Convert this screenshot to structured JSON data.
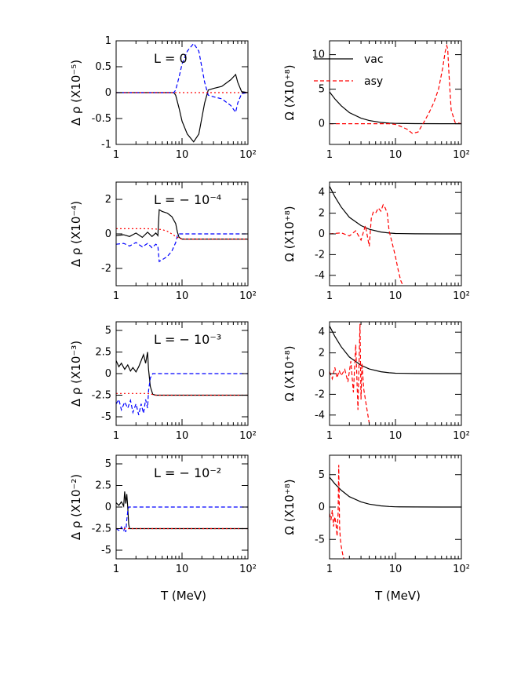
{
  "colors": {
    "vac": "#000000",
    "asy": "#ff0000",
    "blue": "#0000ff",
    "red": "#ff0000",
    "black": "#000000"
  },
  "legend": {
    "vac": "vac",
    "asy": "asy"
  },
  "xaxis": {
    "label": "T (MeV)",
    "ticks": [
      "1",
      "10",
      "10²"
    ],
    "range": [
      1,
      100
    ],
    "scale": "log"
  },
  "chart_data": [
    {
      "id": "L0-drho",
      "type": "line",
      "panel_label": "L = 0",
      "ylabel": "Δ ρ  (X10⁻⁵)",
      "ylim": [
        -1,
        1
      ],
      "yticks": [
        -1,
        -0.5,
        0,
        0.5,
        1
      ],
      "series": [
        {
          "color": "black",
          "style": "solid",
          "x": [
            1,
            5,
            7.5,
            8,
            9,
            10,
            12,
            15,
            18,
            22,
            25,
            30,
            40,
            55,
            65,
            70,
            80,
            100
          ],
          "y": [
            0,
            0,
            0,
            -0.05,
            -0.3,
            -0.55,
            -0.8,
            -0.95,
            -0.8,
            -0.2,
            0.05,
            0.08,
            0.12,
            0.25,
            0.35,
            0.2,
            0.02,
            0
          ]
        },
        {
          "color": "blue",
          "style": "dashed",
          "x": [
            1,
            5,
            7.5,
            8,
            9,
            10,
            12,
            15,
            18,
            22,
            25,
            30,
            40,
            55,
            65,
            70,
            80,
            100
          ],
          "y": [
            0,
            0,
            0,
            0.05,
            0.3,
            0.55,
            0.8,
            0.95,
            0.8,
            0.2,
            -0.05,
            -0.08,
            -0.12,
            -0.25,
            -0.38,
            -0.2,
            -0.02,
            0
          ]
        },
        {
          "color": "red",
          "style": "dotted",
          "x": [
            1,
            100
          ],
          "y": [
            0,
            0
          ]
        }
      ]
    },
    {
      "id": "L0-omega",
      "type": "line",
      "ylabel": "Ω  (X10⁺⁸)",
      "ylim": [
        -3,
        12
      ],
      "yticks": [
        0,
        5,
        10
      ],
      "series": [
        {
          "color": "vac",
          "style": "solid",
          "x": [
            1,
            1.2,
            1.5,
            2,
            3,
            4,
            6,
            8,
            10,
            20,
            50,
            100
          ],
          "y": [
            4.6,
            3.6,
            2.6,
            1.6,
            0.8,
            0.45,
            0.18,
            0.08,
            0.04,
            0.01,
            0,
            0
          ]
        },
        {
          "color": "asy",
          "style": "dashed",
          "x": [
            1,
            8,
            10,
            12,
            15,
            18,
            22,
            27,
            32,
            38,
            45,
            52,
            57,
            60,
            62,
            65,
            70,
            80,
            100
          ],
          "y": [
            0,
            0,
            -0.1,
            -0.4,
            -0.8,
            -1.4,
            -1.2,
            0.2,
            1.5,
            3,
            5,
            8,
            10.5,
            11.3,
            10.8,
            7,
            2,
            0.2,
            0
          ]
        }
      ]
    },
    {
      "id": "L4-drho",
      "type": "line",
      "panel_label": "L = − 10⁻⁴",
      "ylabel": "Δ ρ  (X10⁻⁴)",
      "ylim": [
        -3,
        3
      ],
      "yticks": [
        -2,
        0,
        2
      ],
      "series": [
        {
          "color": "black",
          "style": "solid",
          "x": [
            1,
            1.3,
            1.6,
            2,
            2.5,
            3,
            3.5,
            4,
            4.3,
            4.5,
            5,
            6,
            7,
            8,
            8.5,
            9,
            10,
            100
          ],
          "y": [
            -0.1,
            -0.05,
            -0.15,
            0.05,
            -0.2,
            0.1,
            -0.15,
            0.05,
            -0.1,
            1.4,
            1.3,
            1.2,
            1.0,
            0.6,
            0.1,
            -0.2,
            -0.3,
            -0.3
          ]
        },
        {
          "color": "blue",
          "style": "dashed",
          "x": [
            1,
            1.3,
            1.6,
            2,
            2.5,
            3,
            3.5,
            4,
            4.3,
            4.5,
            5,
            6,
            7,
            8,
            8.5,
            9,
            10,
            100
          ],
          "y": [
            -0.6,
            -0.55,
            -0.7,
            -0.5,
            -0.75,
            -0.55,
            -0.8,
            -0.6,
            -0.7,
            -1.6,
            -1.5,
            -1.3,
            -1.0,
            -0.5,
            -0.1,
            0,
            0,
            0
          ]
        },
        {
          "color": "red",
          "style": "dotted",
          "x": [
            1,
            2,
            3,
            4,
            5,
            6,
            7,
            8,
            9,
            10,
            100
          ],
          "y": [
            0.3,
            0.3,
            0.3,
            0.28,
            0.25,
            0.15,
            0,
            -0.15,
            -0.25,
            -0.3,
            -0.3
          ]
        }
      ]
    },
    {
      "id": "L4-omega",
      "type": "line",
      "ylabel": "Ω  (X10⁺⁸)",
      "ylim": [
        -5,
        5
      ],
      "yticks": [
        -4,
        -2,
        0,
        2,
        4
      ],
      "series": [
        {
          "color": "vac",
          "style": "solid",
          "x": [
            1,
            1.2,
            1.5,
            2,
            3,
            4,
            6,
            8,
            10,
            20,
            50,
            100
          ],
          "y": [
            4.6,
            3.6,
            2.6,
            1.6,
            0.8,
            0.45,
            0.18,
            0.08,
            0.04,
            0.01,
            0,
            0
          ]
        },
        {
          "color": "asy",
          "style": "dashed",
          "x": [
            1,
            1.5,
            2,
            2.5,
            3,
            3.5,
            4,
            4.3,
            4.6,
            5,
            5.5,
            6,
            6.5,
            7,
            7.5,
            8,
            9,
            10,
            11,
            12,
            13
          ],
          "y": [
            0,
            0.1,
            -0.2,
            0.3,
            -0.6,
            0.8,
            -1.2,
            1.5,
            2.1,
            2.0,
            2.5,
            2.2,
            2.8,
            2.5,
            2.0,
            0.3,
            -1.0,
            -2.2,
            -3.5,
            -4.5,
            -5
          ]
        }
      ]
    },
    {
      "id": "L3-drho",
      "type": "line",
      "panel_label": "L = − 10⁻³",
      "ylabel": "Δ ρ  (X10⁻³)",
      "ylim": [
        -6,
        6
      ],
      "yticks": [
        -5,
        -2.5,
        0,
        2.5,
        5
      ],
      "series": [
        {
          "color": "black",
          "style": "solid",
          "x": [
            1,
            1.1,
            1.2,
            1.35,
            1.5,
            1.65,
            1.8,
            2,
            2.2,
            2.4,
            2.6,
            2.8,
            3,
            3.1,
            3.3,
            3.6,
            4,
            10,
            100
          ],
          "y": [
            1.5,
            0.8,
            1.2,
            0.5,
            1.0,
            0.3,
            0.7,
            0.2,
            0.8,
            1.5,
            2.2,
            1.2,
            2.5,
            0.5,
            -1.5,
            -2.4,
            -2.5,
            -2.5,
            -2.5
          ]
        },
        {
          "color": "blue",
          "style": "dashed",
          "x": [
            1,
            1.1,
            1.2,
            1.35,
            1.5,
            1.65,
            1.8,
            2,
            2.2,
            2.4,
            2.6,
            2.8,
            3,
            3.1,
            3.3,
            3.6,
            4,
            10,
            100
          ],
          "y": [
            -3.5,
            -3.0,
            -4.2,
            -3.3,
            -4.0,
            -3.1,
            -4.5,
            -3.5,
            -4.8,
            -3.5,
            -4.6,
            -3.0,
            -4.0,
            -2.0,
            -0.5,
            0,
            0,
            0,
            0
          ]
        },
        {
          "color": "red",
          "style": "dotted",
          "x": [
            1,
            2,
            3,
            3.5,
            4,
            10,
            100
          ],
          "y": [
            -2.3,
            -2.3,
            -2.3,
            -2.4,
            -2.5,
            -2.5,
            -2.5
          ]
        }
      ]
    },
    {
      "id": "L3-omega",
      "type": "line",
      "ylabel": "Ω  (X10⁺⁸)",
      "ylim": [
        -5,
        5
      ],
      "yticks": [
        -4,
        -2,
        0,
        2,
        4
      ],
      "series": [
        {
          "color": "vac",
          "style": "solid",
          "x": [
            1,
            1.2,
            1.5,
            2,
            3,
            4,
            6,
            8,
            10,
            20,
            50,
            100
          ],
          "y": [
            4.6,
            3.6,
            2.6,
            1.6,
            0.8,
            0.45,
            0.18,
            0.08,
            0.04,
            0.01,
            0,
            0
          ]
        },
        {
          "color": "asy",
          "style": "dashed",
          "x": [
            1,
            1.1,
            1.2,
            1.3,
            1.4,
            1.5,
            1.7,
            1.9,
            2.1,
            2.3,
            2.5,
            2.7,
            2.9,
            3.0,
            3.1,
            3.3,
            3.6,
            4.0
          ],
          "y": [
            0.2,
            -0.5,
            0.6,
            -0.4,
            0.3,
            -0.2,
            0.4,
            -0.8,
            1.2,
            -1.8,
            2.8,
            -3.5,
            4.8,
            -2.5,
            1.0,
            -1.5,
            -3.0,
            -4.8
          ]
        }
      ]
    },
    {
      "id": "L2-drho",
      "type": "line",
      "panel_label": "L = − 10⁻²",
      "ylabel": "Δ ρ  (X10⁻²)",
      "ylim": [
        -6,
        6
      ],
      "yticks": [
        -5,
        -2.5,
        0,
        2.5,
        5
      ],
      "series": [
        {
          "color": "black",
          "style": "solid",
          "x": [
            1,
            1.1,
            1.2,
            1.3,
            1.35,
            1.4,
            1.45,
            1.5,
            1.55,
            1.6,
            2,
            100
          ],
          "y": [
            0.5,
            0.2,
            0.6,
            0.1,
            1.8,
            0.4,
            1.5,
            0,
            -2.0,
            -2.5,
            -2.5,
            -2.5
          ]
        },
        {
          "color": "blue",
          "style": "dashed",
          "x": [
            1,
            1.1,
            1.2,
            1.3,
            1.35,
            1.4,
            1.45,
            1.5,
            1.55,
            1.6,
            2,
            100
          ],
          "y": [
            -2.5,
            -2.7,
            -2.3,
            -2.8,
            -2.4,
            -2.9,
            -1.5,
            -0.5,
            0,
            0,
            0,
            0
          ]
        },
        {
          "color": "red",
          "style": "dotted",
          "x": [
            1,
            1.6,
            100
          ],
          "y": [
            -2.5,
            -2.5,
            -2.5
          ]
        }
      ]
    },
    {
      "id": "L2-omega",
      "type": "line",
      "ylabel": "Ω  (X10⁺⁸)",
      "ylim": [
        -8,
        8
      ],
      "yticks": [
        -5,
        0,
        5
      ],
      "series": [
        {
          "color": "vac",
          "style": "solid",
          "x": [
            1,
            1.2,
            1.5,
            2,
            3,
            4,
            6,
            8,
            10,
            20,
            50,
            100
          ],
          "y": [
            4.6,
            3.6,
            2.6,
            1.6,
            0.8,
            0.45,
            0.18,
            0.08,
            0.04,
            0.01,
            0,
            0
          ]
        },
        {
          "color": "asy",
          "style": "dashed",
          "x": [
            1,
            1.05,
            1.1,
            1.15,
            1.2,
            1.25,
            1.3,
            1.35,
            1.38,
            1.42,
            1.46,
            1.5,
            1.55,
            1.6,
            1.65
          ],
          "y": [
            -1.0,
            -2.0,
            -0.5,
            -3.0,
            -1.5,
            -2.5,
            -4.5,
            -1.0,
            6.5,
            -3.0,
            -5.0,
            -6.0,
            -6.8,
            -7.5,
            -8.0
          ]
        }
      ]
    }
  ]
}
